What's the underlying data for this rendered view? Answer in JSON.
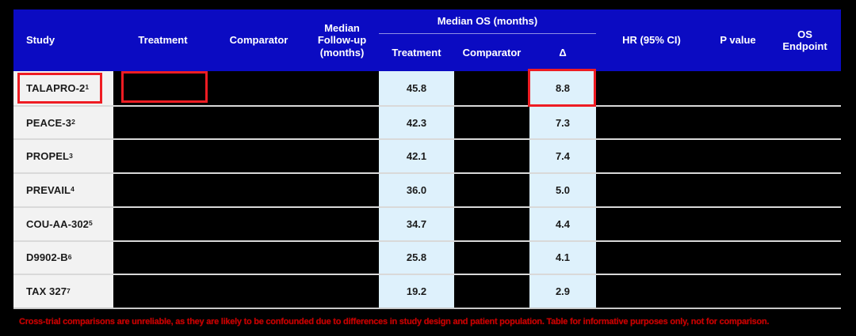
{
  "colors": {
    "header_blue": "#0b0bc2",
    "cell_light_blue": "#def1fc",
    "study_column_gray": "#f2f2f2",
    "highlight_red": "#ee1c23",
    "footnote_red": "#c80000",
    "row_separator": "#d9d9d9",
    "background": "#000000"
  },
  "table": {
    "header": {
      "study": "Study",
      "treatment": "Treatment",
      "comparator": "Comparator",
      "median_followup": "Median\nFollow-up\n(months)",
      "os_group": "Median OS (months)",
      "os_treatment": "Treatment",
      "os_comparator": "Comparator",
      "os_delta": "Δ",
      "hr": "HR (95% CI)",
      "p_value": "P value",
      "os_endpoint": "OS\nEndpoint"
    },
    "rows": [
      {
        "study": "TALAPRO-2",
        "ref": "1",
        "os_treatment": "45.8",
        "delta": "8.8"
      },
      {
        "study": "PEACE-3",
        "ref": "2",
        "os_treatment": "42.3",
        "delta": "7.3"
      },
      {
        "study": "PROPEL",
        "ref": "3",
        "os_treatment": "42.1",
        "delta": "7.4"
      },
      {
        "study": "PREVAIL",
        "ref": "4",
        "os_treatment": "36.0",
        "delta": "5.0"
      },
      {
        "study": "COU-AA-302",
        "ref": "5",
        "os_treatment": "34.7",
        "delta": "4.4"
      },
      {
        "study": "D9902-B",
        "ref": "6",
        "os_treatment": "25.8",
        "delta": "4.1"
      },
      {
        "study": "TAX 327",
        "ref": "7",
        "os_treatment": "19.2",
        "delta": "2.9"
      }
    ]
  },
  "footnote": "Cross-trial comparisons are unreliable, as they are likely to be confounded due to differences in study design and patient population. Table for informative purposes only, not for comparison."
}
